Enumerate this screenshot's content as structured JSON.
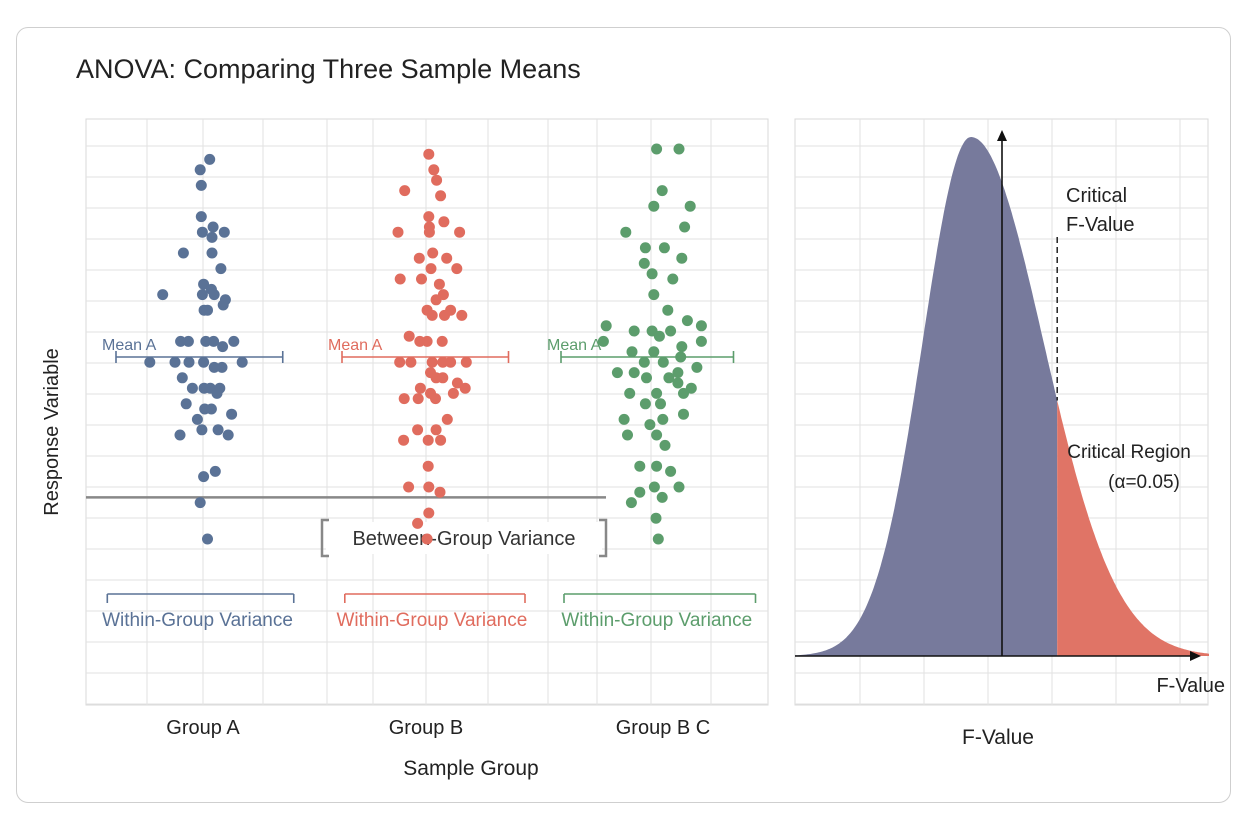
{
  "title": "ANOVA: Comparing Three Sample Means",
  "colors": {
    "group_a": "#5a7296",
    "group_b": "#e06c5e",
    "group_c": "#5c9d6c",
    "curve_fill": "#777a9c",
    "critical_fill": "#e07466",
    "grid": "#e2e2e2",
    "axis_line": "#999999",
    "bracket": "#888888"
  },
  "chart_data": [
    {
      "type": "scatter",
      "xlabel": "Sample Group",
      "ylabel": "Response Variable",
      "categories": [
        "Group A",
        "Group B",
        "Group B C"
      ],
      "ylim": [
        0,
        10
      ],
      "grid": true,
      "series": [
        {
          "name": "Group A",
          "category": 0,
          "mean_label": "Mean A",
          "mean": 5.5,
          "mean_range": [
            -1.45,
            1.45
          ],
          "within_label": "Within-Group Variance",
          "within_range": [
            -1.65,
            1.65
          ],
          "points": [
            [
              0.12,
              9.3
            ],
            [
              -0.05,
              9.1
            ],
            [
              -0.03,
              8.8
            ],
            [
              -0.03,
              8.2
            ],
            [
              0.18,
              8.0
            ],
            [
              -0.01,
              7.9
            ],
            [
              0.38,
              7.9
            ],
            [
              0.16,
              7.8
            ],
            [
              -0.35,
              7.5
            ],
            [
              0.16,
              7.5
            ],
            [
              0.32,
              7.2
            ],
            [
              0.01,
              6.9
            ],
            [
              0.15,
              6.8
            ],
            [
              -0.72,
              6.7
            ],
            [
              -0.01,
              6.7
            ],
            [
              0.2,
              6.7
            ],
            [
              0.4,
              6.6
            ],
            [
              0.36,
              6.5
            ],
            [
              0.02,
              6.4
            ],
            [
              0.08,
              6.4
            ],
            [
              -0.4,
              5.8
            ],
            [
              -0.26,
              5.8
            ],
            [
              0.05,
              5.8
            ],
            [
              0.19,
              5.8
            ],
            [
              0.35,
              5.7
            ],
            [
              0.55,
              5.8
            ],
            [
              -0.95,
              5.4
            ],
            [
              -0.5,
              5.4
            ],
            [
              -0.25,
              5.4
            ],
            [
              0.01,
              5.4
            ],
            [
              0.2,
              5.3
            ],
            [
              0.34,
              5.3
            ],
            [
              0.7,
              5.4
            ],
            [
              -0.37,
              5.1
            ],
            [
              -0.19,
              4.9
            ],
            [
              0.02,
              4.9
            ],
            [
              0.13,
              4.9
            ],
            [
              0.3,
              4.9
            ],
            [
              0.25,
              4.8
            ],
            [
              -0.3,
              4.6
            ],
            [
              0.03,
              4.5
            ],
            [
              0.15,
              4.5
            ],
            [
              0.51,
              4.4
            ],
            [
              -0.1,
              4.3
            ],
            [
              -0.02,
              4.1
            ],
            [
              0.27,
              4.1
            ],
            [
              -0.41,
              4.0
            ],
            [
              0.45,
              4.0
            ],
            [
              0.01,
              3.2
            ],
            [
              0.22,
              3.3
            ],
            [
              -0.05,
              2.7
            ],
            [
              0.08,
              2.0
            ]
          ]
        },
        {
          "name": "Group B",
          "category": 1,
          "mean_label": "Mean A",
          "mean": 5.5,
          "mean_range": [
            -1.4,
            1.5
          ],
          "within_label": "Within-Group Variance",
          "within_range": [
            -1.4,
            1.8
          ],
          "points": [
            [
              0.05,
              9.4
            ],
            [
              0.14,
              9.1
            ],
            [
              0.19,
              8.9
            ],
            [
              -0.38,
              8.7
            ],
            [
              0.26,
              8.6
            ],
            [
              0.05,
              8.2
            ],
            [
              0.32,
              8.1
            ],
            [
              0.06,
              8.0
            ],
            [
              -0.5,
              7.9
            ],
            [
              0.06,
              7.9
            ],
            [
              0.6,
              7.9
            ],
            [
              0.12,
              7.5
            ],
            [
              -0.12,
              7.4
            ],
            [
              0.37,
              7.4
            ],
            [
              0.09,
              7.2
            ],
            [
              0.55,
              7.2
            ],
            [
              -0.46,
              7.0
            ],
            [
              -0.08,
              7.0
            ],
            [
              0.24,
              6.9
            ],
            [
              0.31,
              6.7
            ],
            [
              0.18,
              6.6
            ],
            [
              0.44,
              6.4
            ],
            [
              0.02,
              6.4
            ],
            [
              0.11,
              6.3
            ],
            [
              0.33,
              6.3
            ],
            [
              0.64,
              6.3
            ],
            [
              -0.3,
              5.9
            ],
            [
              -0.11,
              5.8
            ],
            [
              0.02,
              5.8
            ],
            [
              0.29,
              5.8
            ],
            [
              -0.47,
              5.4
            ],
            [
              -0.27,
              5.4
            ],
            [
              0.11,
              5.4
            ],
            [
              0.3,
              5.4
            ],
            [
              0.44,
              5.4
            ],
            [
              0.72,
              5.4
            ],
            [
              0.08,
              5.2
            ],
            [
              0.18,
              5.1
            ],
            [
              0.3,
              5.1
            ],
            [
              0.56,
              5.0
            ],
            [
              -0.1,
              4.9
            ],
            [
              0.08,
              4.8
            ],
            [
              0.49,
              4.8
            ],
            [
              0.7,
              4.9
            ],
            [
              -0.39,
              4.7
            ],
            [
              -0.14,
              4.7
            ],
            [
              0.17,
              4.7
            ],
            [
              0.38,
              4.3
            ],
            [
              -0.15,
              4.1
            ],
            [
              0.18,
              4.1
            ],
            [
              -0.4,
              3.9
            ],
            [
              0.04,
              3.9
            ],
            [
              0.26,
              3.9
            ],
            [
              0.04,
              3.4
            ],
            [
              -0.31,
              3.0
            ],
            [
              0.05,
              3.0
            ],
            [
              0.25,
              2.9
            ],
            [
              -0.15,
              2.3
            ],
            [
              0.05,
              2.5
            ],
            [
              0.02,
              2.0
            ]
          ]
        },
        {
          "name": "Group B C",
          "category": 2,
          "mean_label": "Mean A",
          "mean": 5.5,
          "mean_range": [
            -1.5,
            1.5
          ],
          "within_label": "Within-Group Variance",
          "within_range": [
            -1.5,
            1.9
          ],
          "points": [
            [
              0.1,
              9.5
            ],
            [
              0.5,
              9.5
            ],
            [
              0.2,
              8.7
            ],
            [
              0.05,
              8.4
            ],
            [
              0.7,
              8.4
            ],
            [
              0.6,
              8.0
            ],
            [
              -0.45,
              7.9
            ],
            [
              -0.1,
              7.6
            ],
            [
              0.24,
              7.6
            ],
            [
              -0.12,
              7.3
            ],
            [
              0.55,
              7.4
            ],
            [
              0.02,
              7.1
            ],
            [
              0.39,
              7.0
            ],
            [
              0.05,
              6.7
            ],
            [
              0.3,
              6.4
            ],
            [
              0.65,
              6.2
            ],
            [
              -0.8,
              6.1
            ],
            [
              -0.3,
              6.0
            ],
            [
              0.02,
              6.0
            ],
            [
              0.35,
              6.0
            ],
            [
              0.9,
              6.1
            ],
            [
              0.15,
              5.9
            ],
            [
              -0.85,
              5.8
            ],
            [
              -0.34,
              5.6
            ],
            [
              0.05,
              5.6
            ],
            [
              0.55,
              5.7
            ],
            [
              0.9,
              5.8
            ],
            [
              -0.12,
              5.4
            ],
            [
              0.22,
              5.4
            ],
            [
              0.53,
              5.5
            ],
            [
              0.82,
              5.3
            ],
            [
              0.48,
              5.2
            ],
            [
              -0.6,
              5.2
            ],
            [
              -0.3,
              5.2
            ],
            [
              -0.08,
              5.1
            ],
            [
              0.32,
              5.1
            ],
            [
              0.48,
              5.0
            ],
            [
              0.72,
              4.9
            ],
            [
              -0.38,
              4.8
            ],
            [
              0.1,
              4.8
            ],
            [
              0.58,
              4.8
            ],
            [
              -0.1,
              4.6
            ],
            [
              0.17,
              4.6
            ],
            [
              -0.48,
              4.3
            ],
            [
              -0.02,
              4.2
            ],
            [
              0.21,
              4.3
            ],
            [
              0.58,
              4.4
            ],
            [
              -0.42,
              4.0
            ],
            [
              0.1,
              4.0
            ],
            [
              0.25,
              3.8
            ],
            [
              -0.2,
              3.4
            ],
            [
              0.1,
              3.4
            ],
            [
              0.35,
              3.3
            ],
            [
              0.06,
              3.0
            ],
            [
              0.5,
              3.0
            ],
            [
              -0.2,
              2.9
            ],
            [
              0.2,
              2.8
            ],
            [
              -0.35,
              2.7
            ],
            [
              0.09,
              2.4
            ],
            [
              0.13,
              2.0
            ]
          ]
        }
      ],
      "annotation": {
        "label": "Between-Group Variance",
        "line_level": 2.8
      }
    },
    {
      "type": "area",
      "xlabel": "F-Value",
      "axis_label": "F-Value",
      "xlim": [
        0,
        6
      ],
      "ylim": [
        0,
        1.0
      ],
      "grid": true,
      "curve": {
        "peak_x": 2.55,
        "sigma_left": 0.7,
        "sigma_right": 1.05,
        "peak_y": 1.0
      },
      "vertical_axis_at": 3.0,
      "critical_value": 3.8,
      "critical_label": [
        "Critical",
        "F-Value"
      ],
      "region_label": [
        "Critical Region",
        "(α=0.05)"
      ]
    }
  ]
}
